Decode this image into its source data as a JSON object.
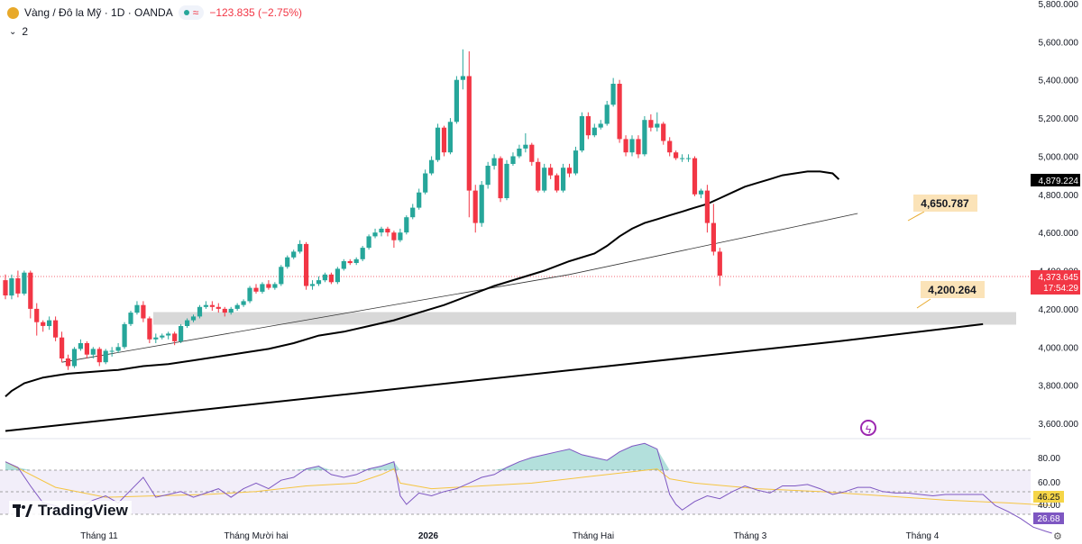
{
  "header": {
    "symbol": "Vàng / Đô la Mỹ · 1D · OANDA",
    "change": "−123.835 (−2.75%)",
    "indicator_count": "2"
  },
  "branding": "TradingView",
  "colors": {
    "up": "#26a69a",
    "down": "#f23645",
    "rsi": "#7e57c2",
    "ma": "#000000"
  },
  "chart_data": {
    "type": "candlestick",
    "x_ticks": [
      "Tháng 11",
      "Tháng Mười hai",
      "2026",
      "Tháng Hai",
      "Tháng 3",
      "Tháng 4"
    ],
    "price_ticks": [
      "5,800.000",
      "5,600.000",
      "5,400.000",
      "5,200.000",
      "5,000.000",
      "4,800.000",
      "4,600.000",
      "4,400.000",
      "4,200.000",
      "4,000.000",
      "3,800.000",
      "3,600.000"
    ],
    "ylim": [
      3540,
      5800
    ],
    "rsi_ticks": [
      "80.00",
      "60.00",
      "40.00"
    ],
    "rsi_ylim": [
      20,
      95
    ],
    "current_price": "4,373.645",
    "countdown": "17:54:29",
    "ma_label": "4,879.224",
    "annotations": [
      "4,650.787",
      "4,200.264"
    ],
    "rsi_labels": [
      "46.25",
      "26.68"
    ],
    "candles": [
      [
        4350,
        4270,
        4380,
        4250
      ],
      [
        4270,
        4360,
        4380,
        4250
      ],
      [
        4360,
        4280,
        4400,
        4260
      ],
      [
        4280,
        4390,
        4400,
        4270
      ],
      [
        4390,
        4200,
        4400,
        4150
      ],
      [
        4200,
        4130,
        4230,
        4060
      ],
      [
        4130,
        4110,
        4140,
        4080
      ],
      [
        4110,
        4140,
        4160,
        4090
      ],
      [
        4140,
        4050,
        4160,
        4030
      ],
      [
        4050,
        3940,
        4080,
        3920
      ],
      [
        3940,
        3900,
        3960,
        3880
      ],
      [
        3900,
        3990,
        4000,
        3890
      ],
      [
        3990,
        4020,
        4040,
        3980
      ],
      [
        4020,
        3960,
        4030,
        3940
      ],
      [
        3960,
        3990,
        4000,
        3940
      ],
      [
        3990,
        3920,
        4000,
        3900
      ],
      [
        3920,
        3980,
        3990,
        3910
      ],
      [
        3980,
        3980,
        4000,
        3950
      ],
      [
        3980,
        4000,
        4020,
        3970
      ],
      [
        4000,
        4120,
        4130,
        3990
      ],
      [
        4120,
        4180,
        4190,
        4110
      ],
      [
        4180,
        4220,
        4240,
        4170
      ],
      [
        4220,
        4150,
        4240,
        4130
      ],
      [
        4150,
        4040,
        4160,
        4020
      ],
      [
        4040,
        4050,
        4070,
        4020
      ],
      [
        4050,
        4060,
        4070,
        4040
      ],
      [
        4060,
        4070,
        4080,
        4040
      ],
      [
        4070,
        4030,
        4080,
        4010
      ],
      [
        4030,
        4110,
        4120,
        4020
      ],
      [
        4110,
        4140,
        4150,
        4100
      ],
      [
        4140,
        4160,
        4170,
        4130
      ],
      [
        4160,
        4210,
        4220,
        4150
      ],
      [
        4210,
        4220,
        4240,
        4200
      ],
      [
        4220,
        4210,
        4240,
        4190
      ],
      [
        4210,
        4200,
        4230,
        4180
      ],
      [
        4200,
        4180,
        4210,
        4160
      ],
      [
        4180,
        4200,
        4210,
        4170
      ],
      [
        4200,
        4220,
        4230,
        4190
      ],
      [
        4220,
        4240,
        4250,
        4210
      ],
      [
        4240,
        4310,
        4320,
        4230
      ],
      [
        4310,
        4290,
        4330,
        4280
      ],
      [
        4290,
        4330,
        4340,
        4280
      ],
      [
        4330,
        4310,
        4350,
        4300
      ],
      [
        4310,
        4330,
        4340,
        4300
      ],
      [
        4330,
        4420,
        4430,
        4320
      ],
      [
        4420,
        4470,
        4480,
        4410
      ],
      [
        4470,
        4500,
        4510,
        4460
      ],
      [
        4500,
        4540,
        4560,
        4490
      ],
      [
        4540,
        4320,
        4550,
        4300
      ],
      [
        4320,
        4330,
        4350,
        4300
      ],
      [
        4330,
        4350,
        4370,
        4320
      ],
      [
        4350,
        4380,
        4390,
        4340
      ],
      [
        4380,
        4340,
        4390,
        4330
      ],
      [
        4340,
        4410,
        4420,
        4330
      ],
      [
        4410,
        4450,
        4460,
        4400
      ],
      [
        4450,
        4440,
        4460,
        4430
      ],
      [
        4440,
        4460,
        4470,
        4430
      ],
      [
        4460,
        4520,
        4530,
        4450
      ],
      [
        4520,
        4580,
        4590,
        4510
      ],
      [
        4580,
        4600,
        4620,
        4570
      ],
      [
        4600,
        4620,
        4630,
        4580
      ],
      [
        4620,
        4600,
        4630,
        4580
      ],
      [
        4600,
        4560,
        4610,
        4520
      ],
      [
        4560,
        4600,
        4620,
        4550
      ],
      [
        4600,
        4680,
        4690,
        4590
      ],
      [
        4680,
        4730,
        4750,
        4670
      ],
      [
        4730,
        4810,
        4830,
        4720
      ],
      [
        4810,
        4910,
        4930,
        4800
      ],
      [
        4910,
        4980,
        5000,
        4900
      ],
      [
        4980,
        5150,
        5170,
        4970
      ],
      [
        5150,
        5020,
        5160,
        5000
      ],
      [
        5020,
        5180,
        5200,
        5010
      ],
      [
        5180,
        5400,
        5420,
        5170
      ],
      [
        5400,
        5420,
        5560,
        5350
      ],
      [
        5420,
        4820,
        5550,
        4680
      ],
      [
        4820,
        4650,
        4850,
        4600
      ],
      [
        4650,
        4850,
        4870,
        4630
      ],
      [
        4850,
        4950,
        4970,
        4830
      ],
      [
        4950,
        4990,
        5010,
        4930
      ],
      [
        4990,
        4780,
        5000,
        4760
      ],
      [
        4780,
        4960,
        4980,
        4770
      ],
      [
        4960,
        5000,
        5020,
        4950
      ],
      [
        5000,
        5040,
        5060,
        4990
      ],
      [
        5040,
        5060,
        5120,
        5020
      ],
      [
        5060,
        4970,
        5070,
        4950
      ],
      [
        4970,
        4820,
        4990,
        4810
      ],
      [
        4820,
        4940,
        4960,
        4810
      ],
      [
        4940,
        4900,
        4960,
        4880
      ],
      [
        4900,
        4820,
        4910,
        4810
      ],
      [
        4820,
        4940,
        4960,
        4810
      ],
      [
        4940,
        4910,
        4960,
        4890
      ],
      [
        4910,
        5030,
        5050,
        4900
      ],
      [
        5030,
        5210,
        5230,
        5020
      ],
      [
        5210,
        5110,
        5230,
        5090
      ],
      [
        5110,
        5150,
        5170,
        5100
      ],
      [
        5150,
        5170,
        5190,
        5140
      ],
      [
        5170,
        5270,
        5290,
        5160
      ],
      [
        5270,
        5380,
        5410,
        5260
      ],
      [
        5380,
        5090,
        5400,
        5070
      ],
      [
        5090,
        5020,
        5110,
        5000
      ],
      [
        5020,
        5090,
        5110,
        5000
      ],
      [
        5090,
        5010,
        5110,
        4990
      ],
      [
        5010,
        5190,
        5210,
        5000
      ],
      [
        5190,
        5150,
        5220,
        5130
      ],
      [
        5150,
        5170,
        5230,
        5130
      ],
      [
        5170,
        5080,
        5180,
        5060
      ],
      [
        5080,
        5020,
        5100,
        5000
      ],
      [
        5020,
        4990,
        5030,
        4980
      ],
      [
        4990,
        4990,
        5010,
        4970
      ],
      [
        4990,
        4990,
        5010,
        4970
      ],
      [
        4990,
        4800,
        5000,
        4790
      ],
      [
        4800,
        4820,
        4830,
        4780
      ],
      [
        4820,
        4650,
        4850,
        4600
      ],
      [
        4650,
        4500,
        4750,
        4480
      ],
      [
        4500,
        4374,
        4520,
        4320
      ]
    ],
    "ma50": [
      [
        0,
        3740
      ],
      [
        1,
        3770
      ],
      [
        2,
        3790
      ],
      [
        3,
        3810
      ],
      [
        4,
        3820
      ],
      [
        6,
        3840
      ],
      [
        8,
        3850
      ],
      [
        10,
        3860
      ],
      [
        14,
        3870
      ],
      [
        18,
        3880
      ],
      [
        22,
        3900
      ],
      [
        26,
        3910
      ],
      [
        30,
        3930
      ],
      [
        34,
        3950
      ],
      [
        38,
        3970
      ],
      [
        42,
        3990
      ],
      [
        46,
        4020
      ],
      [
        50,
        4060
      ],
      [
        54,
        4080
      ],
      [
        58,
        4110
      ],
      [
        62,
        4140
      ],
      [
        66,
        4180
      ],
      [
        70,
        4220
      ],
      [
        74,
        4270
      ],
      [
        78,
        4320
      ],
      [
        82,
        4360
      ],
      [
        86,
        4400
      ],
      [
        90,
        4450
      ],
      [
        94,
        4490
      ],
      [
        96,
        4530
      ],
      [
        98,
        4580
      ],
      [
        100,
        4620
      ],
      [
        102,
        4650
      ],
      [
        104,
        4670
      ],
      [
        106,
        4690
      ],
      [
        108,
        4710
      ],
      [
        110,
        4730
      ],
      [
        112,
        4750
      ],
      [
        114,
        4780
      ],
      [
        116,
        4810
      ],
      [
        118,
        4840
      ],
      [
        120,
        4860
      ],
      [
        122,
        4880
      ],
      [
        124,
        4900
      ],
      [
        126,
        4910
      ],
      [
        128,
        4920
      ],
      [
        130,
        4920
      ],
      [
        132,
        4910
      ],
      [
        133,
        4879
      ]
    ],
    "ma200": [
      [
        0,
        3560
      ],
      [
        133,
        4030
      ],
      [
        156,
        4120
      ]
    ],
    "trendline": [
      [
        9,
        3920
      ],
      [
        90,
        4380
      ],
      [
        136,
        4700
      ]
    ],
    "rsi": [
      [
        0,
        77
      ],
      [
        2,
        73
      ],
      [
        4,
        60
      ],
      [
        6,
        48
      ],
      [
        8,
        46
      ],
      [
        10,
        40
      ],
      [
        12,
        45
      ],
      [
        14,
        50
      ],
      [
        16,
        53
      ],
      [
        18,
        48
      ],
      [
        20,
        57
      ],
      [
        22,
        66
      ],
      [
        24,
        52
      ],
      [
        26,
        54
      ],
      [
        28,
        56
      ],
      [
        30,
        52
      ],
      [
        32,
        55
      ],
      [
        34,
        58
      ],
      [
        36,
        52
      ],
      [
        38,
        58
      ],
      [
        40,
        62
      ],
      [
        42,
        58
      ],
      [
        44,
        64
      ],
      [
        46,
        66
      ],
      [
        48,
        72
      ],
      [
        50,
        74
      ],
      [
        52,
        68
      ],
      [
        54,
        66
      ],
      [
        56,
        68
      ],
      [
        58,
        72
      ],
      [
        60,
        74
      ],
      [
        62,
        77
      ],
      [
        63,
        53
      ],
      [
        64,
        47
      ],
      [
        66,
        55
      ],
      [
        68,
        53
      ],
      [
        70,
        56
      ],
      [
        72,
        58
      ],
      [
        74,
        62
      ],
      [
        76,
        66
      ],
      [
        78,
        68
      ],
      [
        80,
        73
      ],
      [
        82,
        77
      ],
      [
        84,
        80
      ],
      [
        86,
        82
      ],
      [
        88,
        84
      ],
      [
        90,
        86
      ],
      [
        92,
        82
      ],
      [
        94,
        80
      ],
      [
        96,
        78
      ],
      [
        98,
        84
      ],
      [
        100,
        88
      ],
      [
        102,
        90
      ],
      [
        104,
        86
      ],
      [
        106,
        54
      ],
      [
        107,
        47
      ],
      [
        108,
        43
      ],
      [
        110,
        49
      ],
      [
        112,
        53
      ],
      [
        114,
        51
      ],
      [
        116,
        56
      ],
      [
        118,
        60
      ],
      [
        120,
        57
      ],
      [
        122,
        55
      ],
      [
        124,
        60
      ],
      [
        126,
        60
      ],
      [
        128,
        61
      ],
      [
        130,
        58
      ],
      [
        132,
        54
      ],
      [
        134,
        56
      ],
      [
        136,
        59
      ],
      [
        138,
        59
      ],
      [
        140,
        56
      ],
      [
        142,
        55
      ],
      [
        144,
        55
      ],
      [
        146,
        54
      ],
      [
        148,
        53
      ],
      [
        150,
        54
      ],
      [
        152,
        54
      ],
      [
        154,
        54
      ],
      [
        156,
        54
      ],
      [
        157,
        50
      ],
      [
        158,
        46
      ],
      [
        160,
        42
      ],
      [
        162,
        37
      ],
      [
        164,
        31
      ],
      [
        166,
        28
      ],
      [
        167,
        26.68
      ]
    ],
    "rsi_ma": [
      [
        0,
        77
      ],
      [
        8,
        59
      ],
      [
        16,
        52
      ],
      [
        24,
        53
      ],
      [
        32,
        54
      ],
      [
        40,
        56
      ],
      [
        48,
        60
      ],
      [
        56,
        62
      ],
      [
        60,
        68
      ],
      [
        62,
        72
      ],
      [
        63,
        62
      ],
      [
        68,
        58
      ],
      [
        76,
        60
      ],
      [
        84,
        62
      ],
      [
        92,
        66
      ],
      [
        100,
        70
      ],
      [
        104,
        72
      ],
      [
        106,
        65
      ],
      [
        110,
        62
      ],
      [
        120,
        58
      ],
      [
        130,
        56
      ],
      [
        140,
        53
      ],
      [
        150,
        50
      ],
      [
        160,
        48
      ],
      [
        167,
        46.25
      ]
    ]
  }
}
